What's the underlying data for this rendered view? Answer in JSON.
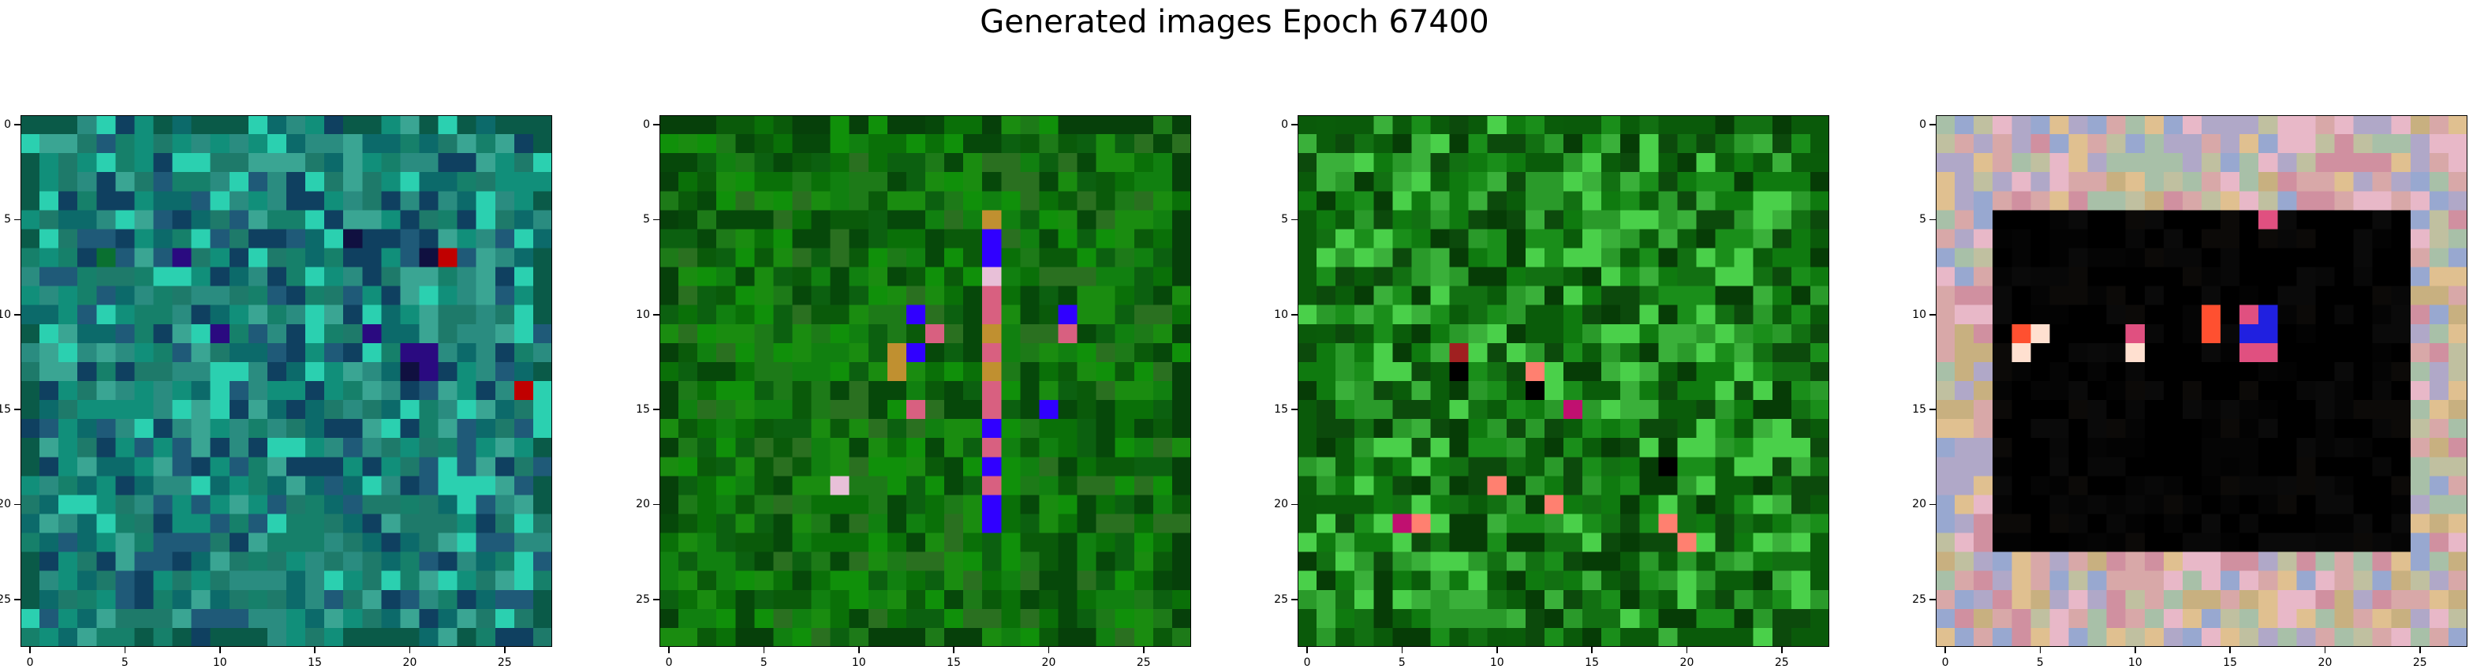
{
  "title": "Generated images Epoch 67400",
  "chart_data": [
    {
      "type": "heatmap",
      "subtitle": "",
      "grid": 28,
      "xlim": [
        0,
        27
      ],
      "ylim": [
        27,
        0
      ],
      "xticks": [
        "0",
        "5",
        "10",
        "15",
        "20",
        "25"
      ],
      "yticks": [
        "0",
        "5",
        "10",
        "15",
        "20",
        "25"
      ],
      "palette": [
        "#1e7a6a",
        "#16806a",
        "#2a8c80",
        "#118f7a",
        "#3aa593",
        "#0c6a6a",
        "#1f5a78",
        "#0f4060",
        "#2bd0b0"
      ],
      "accents": [
        "#c00000",
        "#2a0a80",
        "#101040",
        "#0a7030"
      ],
      "border_color": "#0a5a48"
    },
    {
      "type": "heatmap",
      "subtitle": "",
      "grid": 28,
      "xlim": [
        0,
        27
      ],
      "ylim": [
        27,
        0
      ],
      "xticks": [
        "0",
        "5",
        "10",
        "15",
        "20",
        "25"
      ],
      "yticks": [
        "0",
        "5",
        "10",
        "15",
        "20",
        "25"
      ],
      "palette": [
        "#0a7008",
        "#118010",
        "#0a5a0a",
        "#1a8c10",
        "#06480a",
        "#2a7020",
        "#10900a",
        "#0c6010",
        "#1d7a18"
      ],
      "accents": [
        "#3000ff",
        "#d86080",
        "#c09030",
        "#e8c0d8"
      ],
      "border_color": "#06400a"
    },
    {
      "type": "heatmap",
      "subtitle": "",
      "grid": 28,
      "xlim": [
        0,
        27
      ],
      "ylim": [
        27,
        0
      ],
      "xticks": [
        "0",
        "5",
        "10",
        "15",
        "20",
        "25"
      ],
      "yticks": [
        "0",
        "5",
        "10",
        "15",
        "20",
        "25"
      ],
      "palette": [
        "#0f7a0f",
        "#1a8e1a",
        "#0a5c0a",
        "#2a9a2a",
        "#063c06",
        "#3ab03a",
        "#127012",
        "#0c4a0c",
        "#4ad04a"
      ],
      "accents": [
        "#ff8070",
        "#c01070",
        "#a02020",
        "#000000"
      ],
      "border_color": "#0a5a0a"
    },
    {
      "type": "heatmap",
      "subtitle": "",
      "grid": 28,
      "xlim": [
        0,
        27
      ],
      "ylim": [
        27,
        0
      ],
      "xticks": [
        "0",
        "5",
        "10",
        "15",
        "20",
        "25"
      ],
      "yticks": [
        "0",
        "5",
        "10",
        "15",
        "20",
        "25"
      ],
      "palette": [
        "#000000",
        "#050505",
        "#0a0a0a",
        "#000000",
        "#080808",
        "#000000",
        "#0c0a08",
        "#000000",
        "#030303"
      ],
      "accents": [
        "#ff5030",
        "#ffe0d0",
        "#2020e0",
        "#e05080"
      ],
      "border_color": "#c8a898",
      "border_palette": [
        "#d8a8a8",
        "#c0c0a0",
        "#e0c090",
        "#b0a8c8",
        "#d090a0",
        "#a8c0a8",
        "#e8b8c8",
        "#c8b080",
        "#98a8d0"
      ]
    }
  ]
}
